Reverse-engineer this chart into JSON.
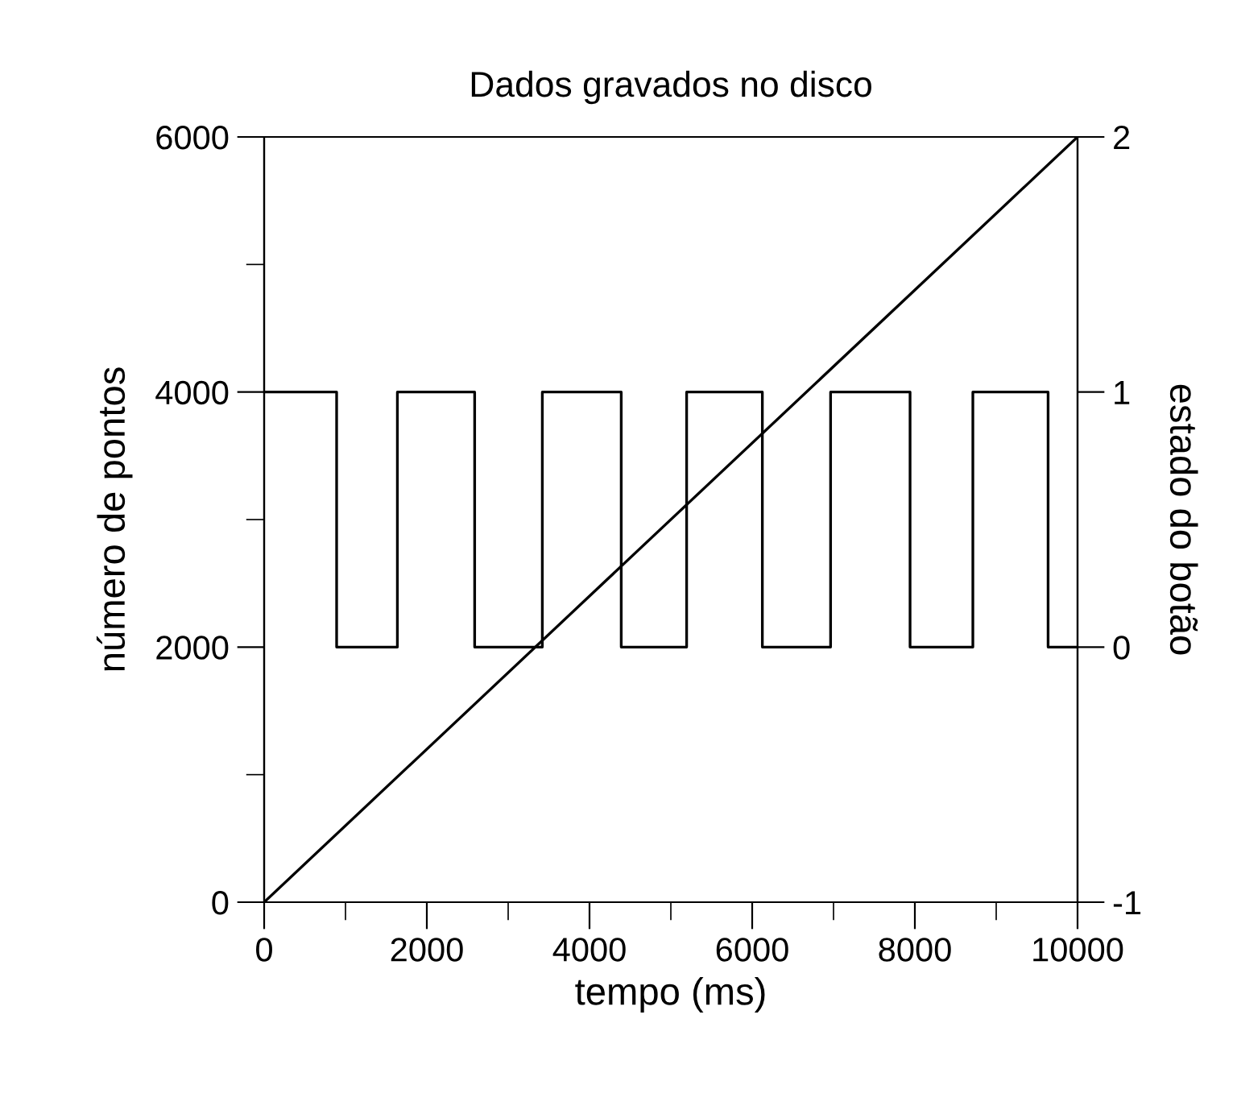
{
  "chart_data": {
    "type": "line",
    "title": "Dados gravados no disco",
    "xlabel": "tempo (ms)",
    "ylabel": "número de pontos",
    "y2label": "estado do botão",
    "series": [
      {
        "color": "#000000",
        "x": [
          0,
          10000
        ],
        "values": [
          0,
          6000
        ]
      },
      {
        "type": "step",
        "axis": "y2",
        "color": "#000000",
        "x": [
          0,
          891,
          1638,
          2588,
          3420,
          4390,
          5194,
          6125,
          6964,
          7941,
          8713,
          9638,
          10000
        ],
        "values": [
          1,
          0,
          1,
          0,
          1,
          0,
          1,
          0,
          1,
          0,
          1,
          0,
          0
        ]
      }
    ],
    "xlim": [
      0,
      10000
    ],
    "xticks": [
      0,
      {
        "value": 1000,
        "label": null
      },
      2000,
      {
        "value": 3000,
        "label": null
      },
      4000,
      {
        "value": 5000,
        "label": null
      },
      6000,
      {
        "value": 7000,
        "label": null
      },
      8000,
      {
        "value": 9000,
        "label": null
      },
      10000
    ],
    "ylim": [
      0,
      6000
    ],
    "yticks": [
      0,
      {
        "value": 1000,
        "label": null
      },
      2000,
      {
        "value": 3000,
        "label": null
      },
      4000,
      {
        "value": 5000,
        "label": null
      },
      6000
    ],
    "y2lim": [
      -1,
      2
    ],
    "y2ticks": [
      {
        "value": -1,
        "label": "-1"
      },
      0,
      1,
      2
    ],
    "grid": false,
    "legend": false
  }
}
